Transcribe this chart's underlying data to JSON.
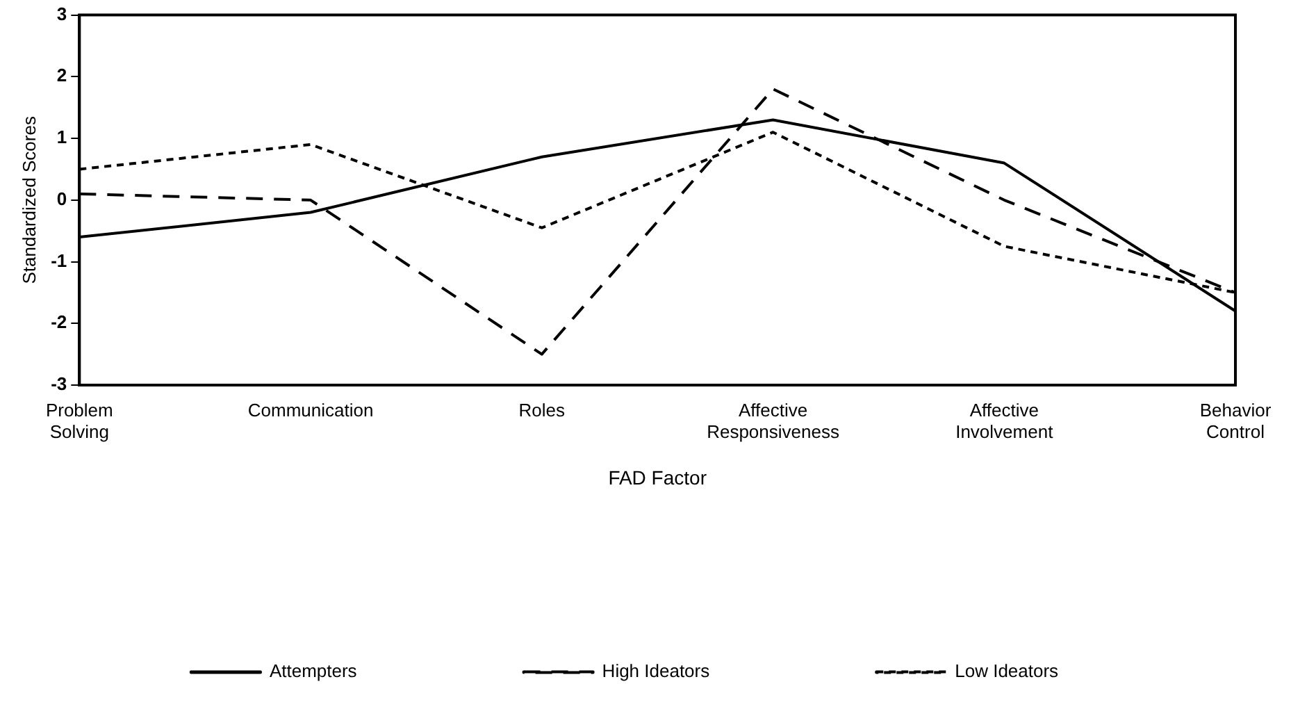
{
  "chart_data": {
    "type": "line",
    "xlabel": "FAD Factor",
    "ylabel": "Standardized Scores",
    "categories": [
      "Problem Solving",
      "Communication",
      "Roles",
      "Affective Responsiveness",
      "Affective Involvement",
      "Behavior Control"
    ],
    "series": [
      {
        "name": "Attempters",
        "color": "#000000",
        "line_style": "solid",
        "values": [
          -0.6,
          -0.2,
          0.7,
          1.3,
          0.6,
          -1.8
        ]
      },
      {
        "name": "High Ideators",
        "color": "#000000",
        "line_style": "dashed",
        "values": [
          0.1,
          0.0,
          -2.5,
          1.8,
          0.0,
          -1.5
        ]
      },
      {
        "name": "Low Ideators",
        "color": "#000000",
        "line_style": "dotted",
        "values": [
          0.5,
          0.9,
          -0.45,
          1.1,
          -0.75,
          -1.5
        ]
      }
    ],
    "ylim": [
      -3,
      3
    ],
    "yticks": [
      -3,
      -2,
      -1,
      0,
      1,
      2,
      3
    ],
    "grid": false,
    "legend": "bottom",
    "marker": "none"
  }
}
